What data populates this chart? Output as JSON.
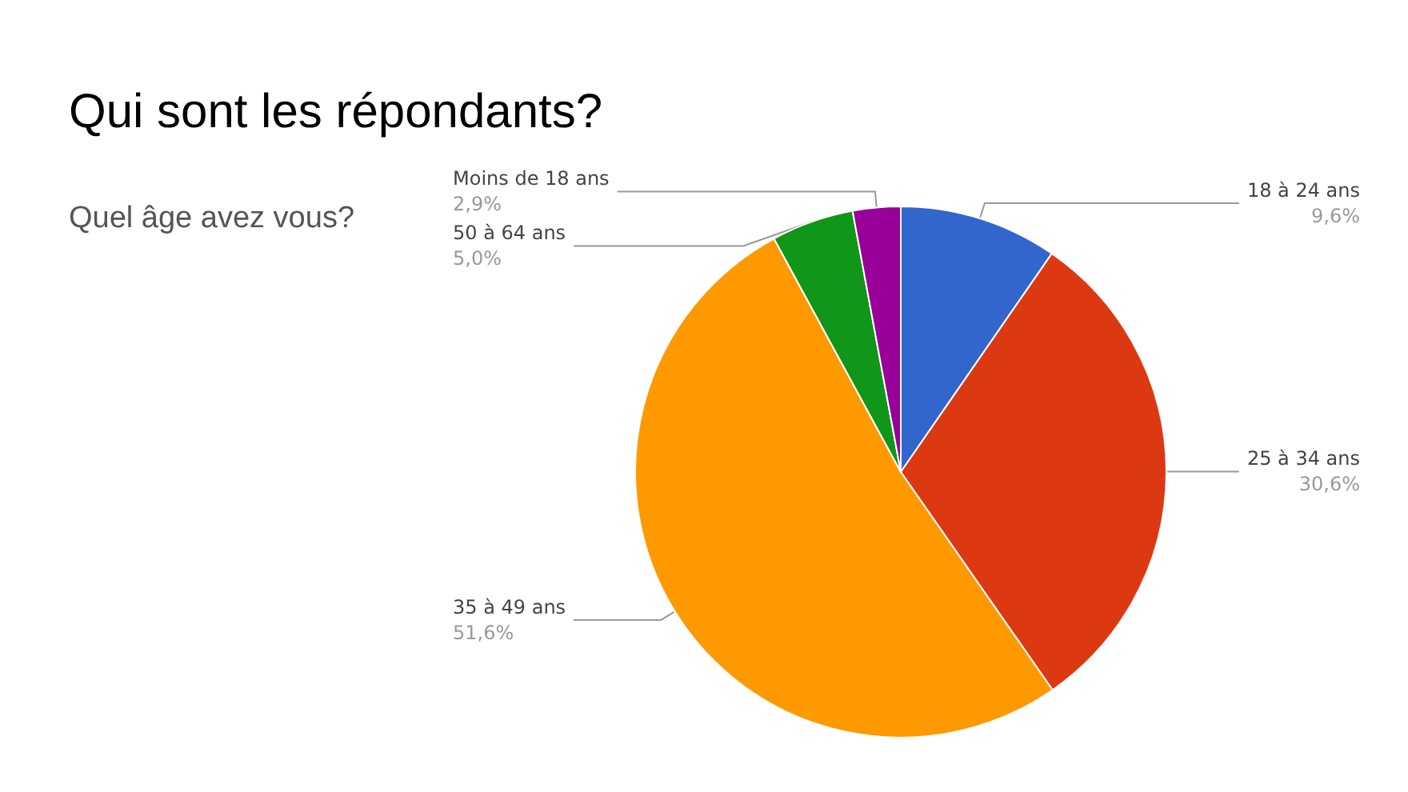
{
  "chart_data": {
    "type": "pie",
    "title": "Qui sont les répondants?",
    "subtitle": "Quel âge avez vous?",
    "categories": [
      "18 à 24 ans",
      "25 à 34 ans",
      "35 à 49 ans",
      "50 à 64 ans",
      "Moins de 18 ans"
    ],
    "values": [
      9.6,
      30.6,
      51.6,
      5.0,
      2.9
    ],
    "colors": [
      "#3366cc",
      "#dc3912",
      "#ff9900",
      "#109618",
      "#990099"
    ],
    "value_labels": [
      "9,6%",
      "30,6%",
      "51,6%",
      "5,0%",
      "2,9%"
    ],
    "legend": false
  }
}
